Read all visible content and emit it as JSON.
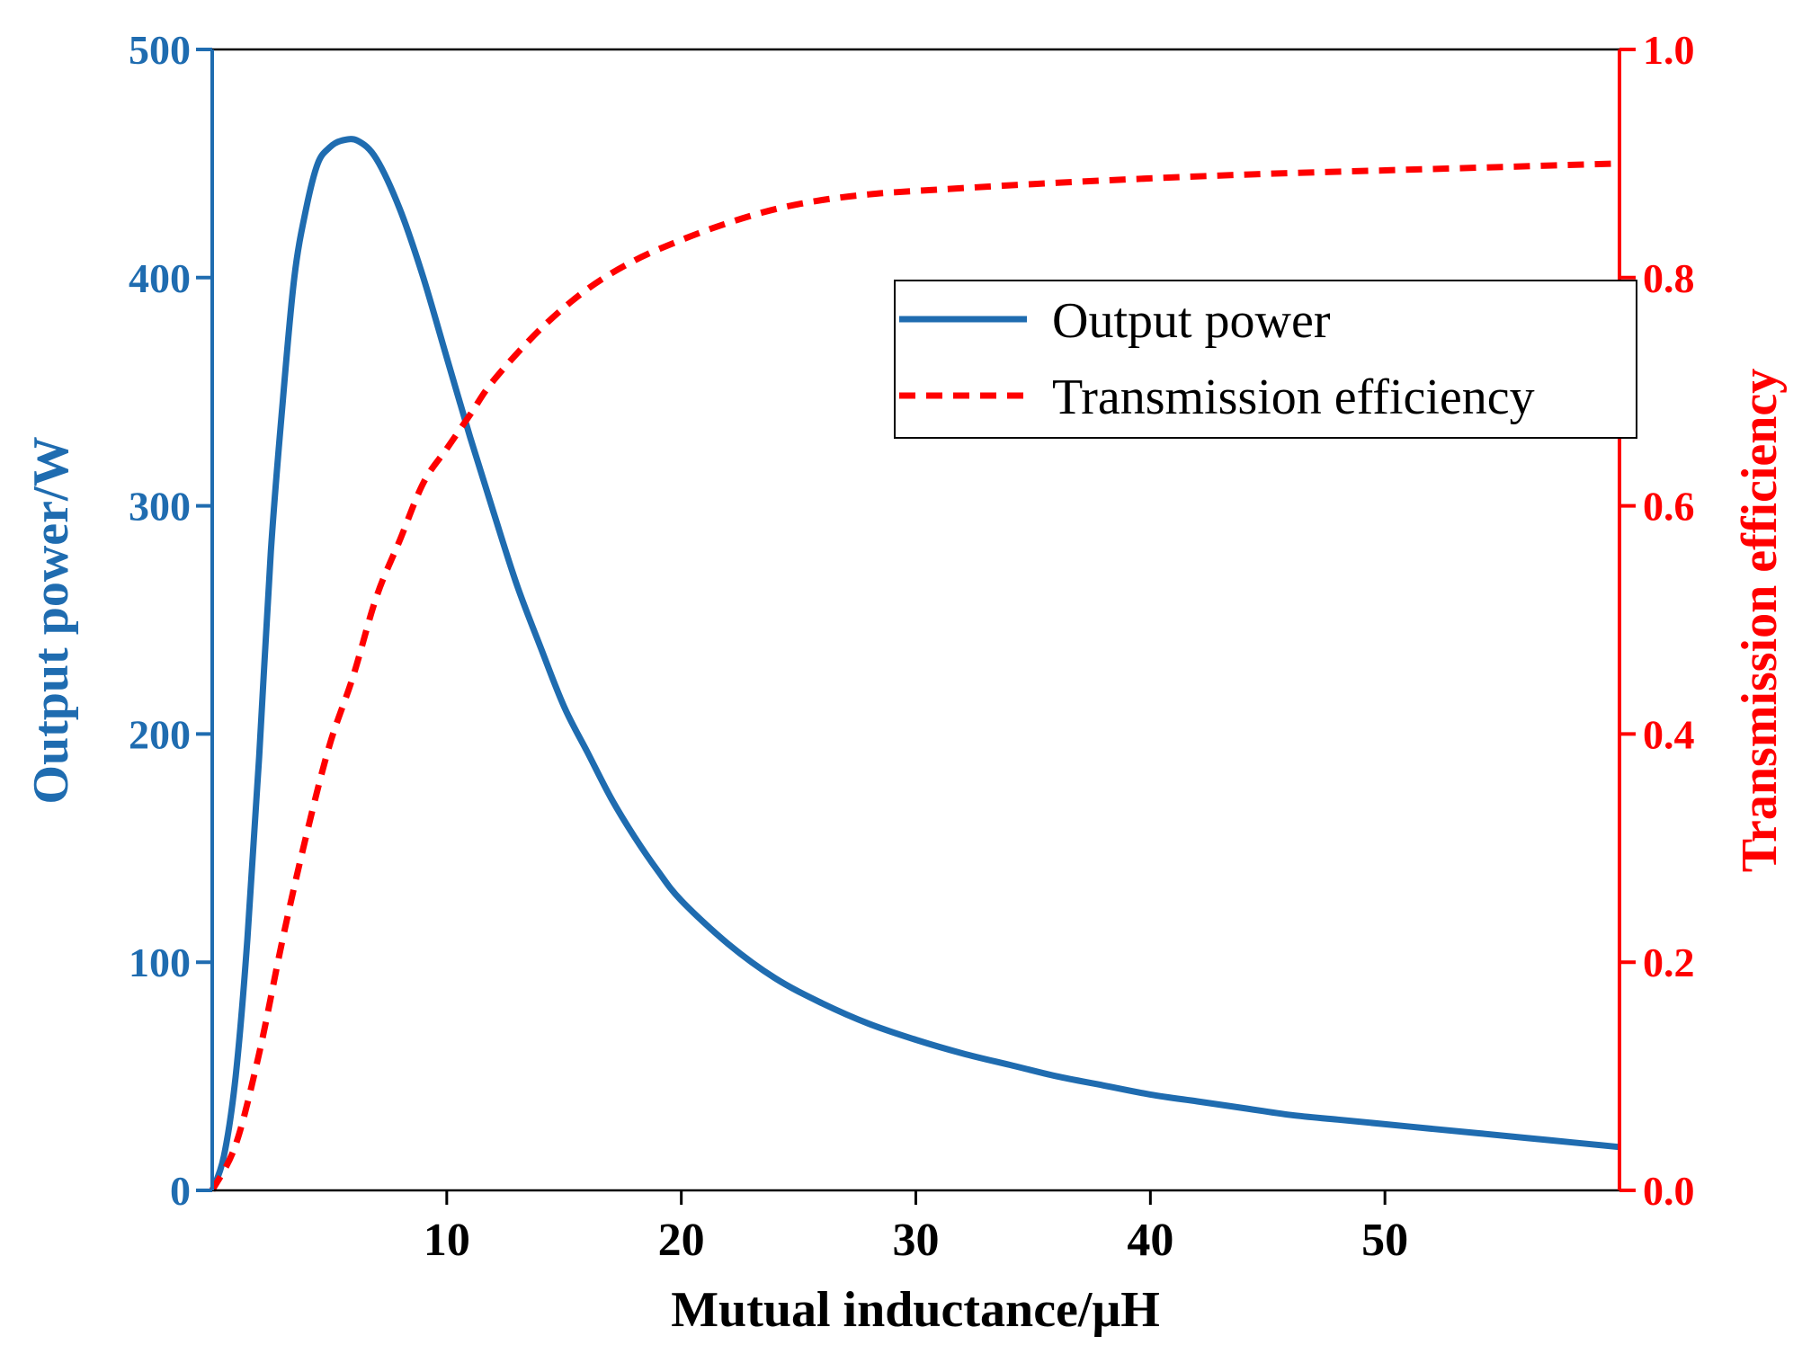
{
  "chart_data": {
    "type": "line",
    "title": "",
    "xlabel": "Mutual inductance/μH",
    "ylabel_left": "Output power/W",
    "ylabel_right": "Transmission efficiency",
    "xlim": [
      0,
      60
    ],
    "ylim_left": [
      0,
      500
    ],
    "ylim_right": [
      0.0,
      1.0
    ],
    "x_ticks": [
      "10",
      "20",
      "30",
      "40",
      "50"
    ],
    "y_ticks_left": [
      "0",
      "100",
      "200",
      "300",
      "400",
      "500"
    ],
    "y_ticks_right": [
      "0.0",
      "0.2",
      "0.4",
      "0.6",
      "0.8",
      "1.0"
    ],
    "grid": false,
    "legend_position": "upper-right",
    "colors": {
      "left_axis": "#1F6CB0",
      "right_axis": "#FF0000",
      "frame": "#000000"
    },
    "series": [
      {
        "name": "Output power",
        "axis": "left",
        "style": "solid",
        "color": "#1F6CB0",
        "x": [
          0,
          0.5,
          1,
          1.5,
          2,
          2.5,
          3,
          3.5,
          4,
          4.5,
          5,
          5.5,
          6.2,
          7,
          8,
          9,
          10,
          11,
          12,
          13,
          14,
          15,
          16,
          17,
          18,
          19,
          20,
          22,
          24,
          26,
          28,
          30,
          32,
          34,
          36,
          38,
          40,
          42,
          44,
          46,
          48,
          50,
          52,
          54,
          56,
          58,
          60
        ],
        "values": [
          0,
          15,
          50,
          110,
          190,
          280,
          345,
          400,
          430,
          450,
          457,
          460,
          460,
          452,
          430,
          400,
          365,
          330,
          297,
          265,
          238,
          212,
          192,
          172,
          155,
          140,
          127,
          108,
          93,
          82,
          73,
          66,
          60,
          55,
          50,
          46,
          42,
          39,
          36,
          33,
          31,
          29,
          27,
          25,
          23,
          21,
          19
        ]
      },
      {
        "name": "Transmission efficiency",
        "axis": "right",
        "style": "dashed",
        "color": "#FF0000",
        "x": [
          0,
          1,
          2,
          3,
          4,
          5,
          6,
          7,
          8,
          9,
          10,
          11,
          12,
          14,
          16,
          18,
          20,
          22,
          24,
          26,
          28,
          30,
          35,
          40,
          45,
          50,
          55,
          60
        ],
        "values": [
          0.0,
          0.04,
          0.12,
          0.22,
          0.31,
          0.39,
          0.45,
          0.52,
          0.57,
          0.62,
          0.65,
          0.68,
          0.71,
          0.755,
          0.79,
          0.815,
          0.833,
          0.848,
          0.86,
          0.868,
          0.873,
          0.876,
          0.882,
          0.887,
          0.891,
          0.894,
          0.897,
          0.9
        ]
      }
    ]
  }
}
